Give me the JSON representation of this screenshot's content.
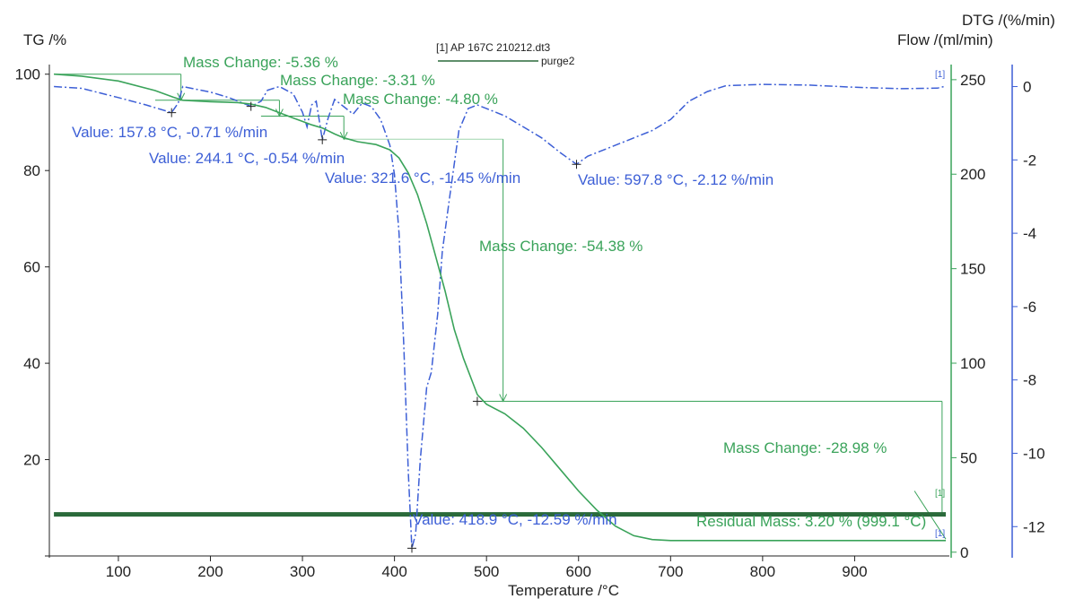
{
  "colors": {
    "tg": "#3aa35a",
    "dtg": "#3d5fd6",
    "purge": "#2a6a3a",
    "axis": "#222222",
    "blue_axis": "#3d5fd6",
    "green_axis": "#3aa35a"
  },
  "chart_data": {
    "type": "line",
    "xlabel": "Temperature /°C",
    "xlim": [
      25,
      1000
    ],
    "x_ticks": [
      "100",
      "200",
      "300",
      "400",
      "500",
      "600",
      "700",
      "800",
      "900"
    ],
    "y_left": {
      "label": "TG /%",
      "lim": [
        0,
        102
      ],
      "ticks": [
        "20",
        "40",
        "60",
        "80",
        "100"
      ]
    },
    "y_flow": {
      "label": "Flow /(ml/min)",
      "lim": [
        -2,
        258
      ],
      "ticks": [
        "0",
        "50",
        "100",
        "150",
        "200",
        "250"
      ]
    },
    "y_dtg": {
      "label": "DTG /(%/min)",
      "lim": [
        -12.8,
        0.6
      ],
      "ticks": [
        "0",
        "-2",
        "-4",
        "-6",
        "-8",
        "-10",
        "-12"
      ]
    },
    "legend": {
      "file": "[1] AP 167C 210212.dt3",
      "series": "purge2"
    },
    "series": [
      {
        "name": "TG",
        "axis": "y_left",
        "x": [
          30,
          60,
          100,
          140,
          160,
          170,
          200,
          230,
          244,
          260,
          275,
          290,
          300,
          310,
          322,
          335,
          345,
          360,
          380,
          395,
          405,
          415,
          425,
          435,
          445,
          455,
          465,
          475,
          485,
          490,
          500,
          520,
          540,
          560,
          580,
          600,
          620,
          640,
          660,
          680,
          700,
          720,
          750,
          800,
          900,
          999
        ],
        "y": [
          100,
          99.6,
          98.6,
          96.6,
          95.2,
          94.6,
          94.3,
          94.1,
          93.8,
          93.1,
          92.0,
          90.9,
          90.2,
          89.5,
          88.8,
          87.6,
          86.8,
          86.0,
          85.4,
          84.3,
          82.6,
          79.5,
          75,
          69,
          62,
          55,
          47,
          41,
          36,
          33.5,
          31.5,
          29.5,
          26.5,
          22.5,
          18,
          13.5,
          9.5,
          6.2,
          4.2,
          3.4,
          3.2,
          3.2,
          3.2,
          3.2,
          3.2,
          3.2
        ]
      },
      {
        "name": "DTG",
        "axis": "y_dtg",
        "x": [
          30,
          60,
          100,
          130,
          157.8,
          165,
          170,
          180,
          200,
          220,
          244.1,
          255,
          262,
          275,
          290,
          300,
          305,
          310,
          315,
          321.6,
          328,
          335,
          345,
          355,
          365,
          375,
          385,
          395,
          400,
          405,
          410,
          415,
          418.9,
          423,
          428,
          435,
          440,
          447,
          452,
          460,
          470,
          480,
          490,
          500,
          520,
          540,
          560,
          580,
          597.8,
          610,
          630,
          650,
          680,
          700,
          720,
          740,
          760,
          800,
          850,
          900,
          950,
          990,
          999
        ],
        "y": [
          0,
          -0.1,
          -0.3,
          -0.5,
          -0.71,
          -0.45,
          0,
          -0.05,
          -0.15,
          -0.3,
          -0.54,
          -0.4,
          -0.1,
          0,
          -0.2,
          -0.7,
          -1.1,
          -0.5,
          -0.4,
          -1.45,
          -0.85,
          -0.35,
          -0.55,
          -0.75,
          -0.45,
          -0.55,
          -0.9,
          -1.6,
          -2.4,
          -4,
          -7,
          -10.5,
          -12.59,
          -12.2,
          -10.2,
          -8.2,
          -7.8,
          -6.2,
          -4.5,
          -3,
          -1.2,
          -0.6,
          -0.5,
          -0.6,
          -0.8,
          -1.1,
          -1.4,
          -1.8,
          -2.12,
          -1.9,
          -1.7,
          -1.5,
          -1.2,
          -0.9,
          -0.4,
          -0.1,
          0,
          0,
          0,
          0,
          0,
          0,
          0
        ]
      },
      {
        "name": "purge2",
        "axis": "y_flow",
        "x": [
          30,
          999
        ],
        "y": [
          20,
          20
        ]
      }
    ],
    "annotations": {
      "mass_changes": [
        "Mass Change: -5.36 %",
        "Mass Change: -3.31 %",
        "Mass Change: -4.80 %",
        "Mass Change: -54.38 %",
        "Mass Change: -28.98 %"
      ],
      "peak_values": [
        "Value: 157.8 °C, -0.71 %/min",
        "Value: 244.1 °C, -0.54 %/min",
        "Value: 321.6 °C, -1.45 %/min",
        "Value: 597.8 °C, -2.12 %/min",
        "Value: 418.9 °C, -12.59 %/min"
      ],
      "residual": "Residual Mass: 3.20 % (999.1 °C)",
      "markers": [
        "[1]",
        "[1]",
        "[1]"
      ]
    }
  }
}
